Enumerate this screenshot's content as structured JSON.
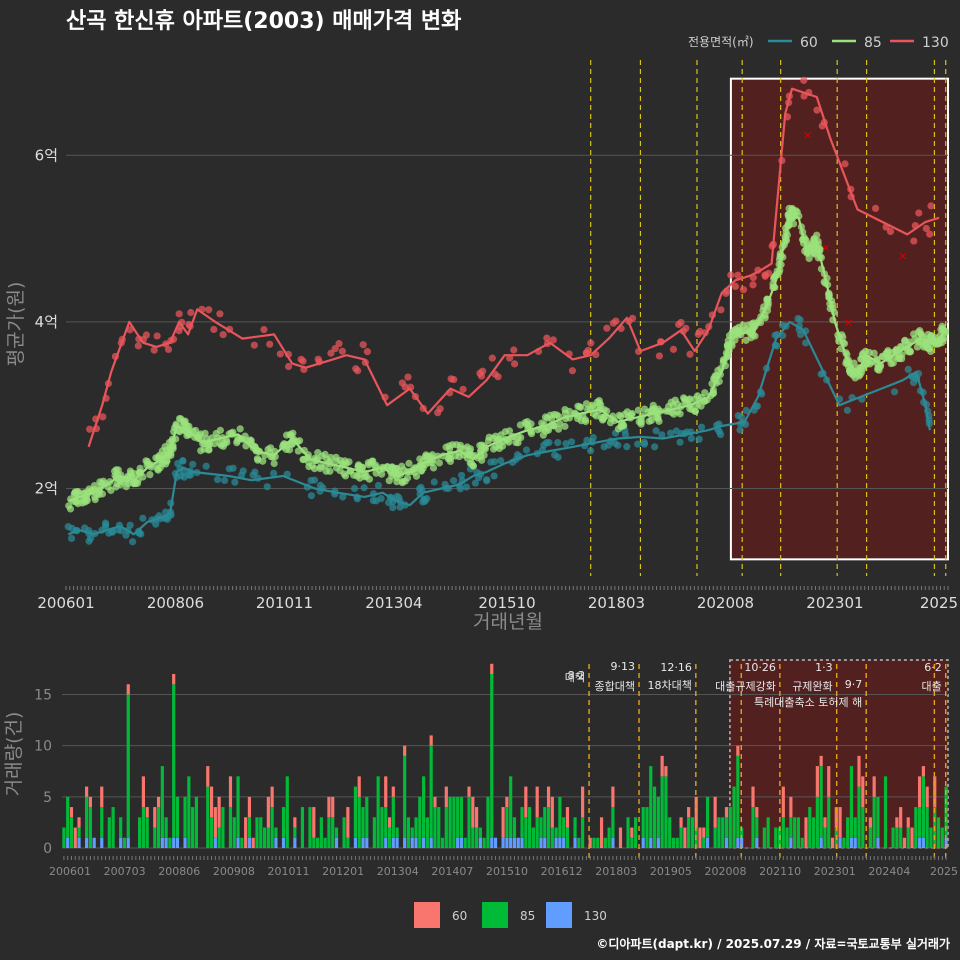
{
  "title": "산곡 한신휴 아파트(2003) 매매가격 변화",
  "credit": "©디아파트(dapt.kr) / 2025.07.29 / 자료=국토교통부 실거래가",
  "colors": {
    "s60": "#2a8a96",
    "s85": "#9be27c",
    "s130": "#e8555a",
    "bar60": "#f8766d",
    "bar85": "#00ba38",
    "bar130": "#619cff",
    "dash": "#d8c21a",
    "ann_dash": "#e8a21a",
    "highlight": "#5a1f1f"
  },
  "chart_data": [
    {
      "type": "line",
      "name": "price",
      "title": "산곡 한신휴 아파트(2003) 매매가격 변화",
      "xlabel": "거래년월",
      "ylabel": "평균가(원)",
      "x_ticks": [
        "200601",
        "200806",
        "201011",
        "201304",
        "201510",
        "201803",
        "202008",
        "202301",
        "2025"
      ],
      "y_ticks": [
        {
          "v": 2,
          "label": "2억"
        },
        {
          "v": 4,
          "label": "4억"
        },
        {
          "v": 6,
          "label": "6억"
        }
      ],
      "ylim": [
        0.95,
        7.0
      ],
      "xlim": [
        2006.0,
        2025.5
      ],
      "legend_title": "전용면적(㎡)",
      "highlight_range": [
        2020.7,
        2025.5
      ],
      "policy_lines": [
        2017.6,
        2018.7,
        2019.95,
        2020.95,
        2021.8,
        2023.05,
        2023.7,
        2025.2,
        2025.45
      ],
      "series": [
        {
          "name": "60",
          "points": [
            [
              2006.05,
              1.45
            ],
            [
              2006.3,
              1.5
            ],
            [
              2006.6,
              1.45
            ],
            [
              2006.9,
              1.5
            ],
            [
              2007.2,
              1.55
            ],
            [
              2007.5,
              1.45
            ],
            [
              2007.8,
              1.6
            ],
            [
              2008.1,
              1.65
            ],
            [
              2008.3,
              1.7
            ],
            [
              2008.45,
              2.2
            ],
            [
              2008.6,
              2.25
            ],
            [
              2008.8,
              2.2
            ],
            [
              2009.6,
              2.15
            ],
            [
              2010.1,
              2.1
            ],
            [
              2010.8,
              2.15
            ],
            [
              2011.5,
              2.0
            ],
            [
              2012.0,
              1.95
            ],
            [
              2012.6,
              1.9
            ],
            [
              2013.0,
              1.95
            ],
            [
              2013.3,
              1.85
            ],
            [
              2013.6,
              1.8
            ],
            [
              2013.9,
              1.95
            ],
            [
              2014.3,
              2.0
            ],
            [
              2014.7,
              2.05
            ],
            [
              2015.0,
              2.15
            ],
            [
              2015.3,
              2.2
            ],
            [
              2015.7,
              2.3
            ],
            [
              2016.2,
              2.4
            ],
            [
              2016.7,
              2.45
            ],
            [
              2017.2,
              2.5
            ],
            [
              2017.7,
              2.55
            ],
            [
              2018.2,
              2.6
            ],
            [
              2018.7,
              2.62
            ],
            [
              2019.2,
              2.6
            ],
            [
              2019.7,
              2.65
            ],
            [
              2020.2,
              2.7
            ],
            [
              2020.5,
              2.75
            ],
            [
              2021.0,
              2.8
            ],
            [
              2021.3,
              3.1
            ],
            [
              2021.7,
              3.8
            ],
            [
              2022.0,
              4.0
            ],
            [
              2022.3,
              3.9
            ],
            [
              2023.1,
              3.0
            ],
            [
              2024.5,
              3.3
            ],
            [
              2024.8,
              3.4
            ],
            [
              2025.0,
              3.0
            ],
            [
              2025.1,
              2.7
            ]
          ]
        },
        {
          "name": "85",
          "points": [
            [
              2006.05,
              1.85
            ],
            [
              2006.3,
              1.9
            ],
            [
              2006.6,
              1.95
            ],
            [
              2006.9,
              2.05
            ],
            [
              2007.2,
              2.15
            ],
            [
              2007.5,
              2.1
            ],
            [
              2007.8,
              2.25
            ],
            [
              2008.1,
              2.35
            ],
            [
              2008.3,
              2.45
            ],
            [
              2008.45,
              2.75
            ],
            [
              2008.7,
              2.7
            ],
            [
              2009.0,
              2.55
            ],
            [
              2009.4,
              2.6
            ],
            [
              2009.8,
              2.65
            ],
            [
              2010.2,
              2.45
            ],
            [
              2010.6,
              2.4
            ],
            [
              2011.0,
              2.6
            ],
            [
              2011.4,
              2.35
            ],
            [
              2011.8,
              2.3
            ],
            [
              2012.2,
              2.25
            ],
            [
              2012.6,
              2.2
            ],
            [
              2013.0,
              2.25
            ],
            [
              2013.3,
              2.15
            ],
            [
              2013.6,
              2.2
            ],
            [
              2013.9,
              2.3
            ],
            [
              2014.3,
              2.4
            ],
            [
              2014.7,
              2.45
            ],
            [
              2015.0,
              2.35
            ],
            [
              2015.3,
              2.5
            ],
            [
              2015.7,
              2.6
            ],
            [
              2016.2,
              2.7
            ],
            [
              2016.6,
              2.75
            ],
            [
              2017.0,
              2.85
            ],
            [
              2017.4,
              2.9
            ],
            [
              2017.8,
              2.95
            ],
            [
              2018.2,
              2.8
            ],
            [
              2018.6,
              2.85
            ],
            [
              2019.0,
              2.9
            ],
            [
              2019.4,
              2.95
            ],
            [
              2019.8,
              3.0
            ],
            [
              2020.2,
              3.1
            ],
            [
              2020.5,
              3.4
            ],
            [
              2020.7,
              3.8
            ],
            [
              2020.9,
              3.85
            ],
            [
              2021.2,
              3.9
            ],
            [
              2021.5,
              4.2
            ],
            [
              2021.7,
              4.5
            ],
            [
              2021.9,
              5.0
            ],
            [
              2022.0,
              5.3
            ],
            [
              2022.2,
              5.25
            ],
            [
              2022.4,
              4.8
            ],
            [
              2022.6,
              4.95
            ],
            [
              2022.8,
              4.5
            ],
            [
              2023.0,
              4.0
            ],
            [
              2023.3,
              3.5
            ],
            [
              2023.5,
              3.4
            ],
            [
              2023.7,
              3.6
            ],
            [
              2024.0,
              3.5
            ],
            [
              2024.3,
              3.6
            ],
            [
              2024.6,
              3.7
            ],
            [
              2024.9,
              3.8
            ],
            [
              2025.1,
              3.75
            ],
            [
              2025.3,
              3.8
            ],
            [
              2025.45,
              3.9
            ]
          ]
        },
        {
          "name": "130",
          "points": [
            [
              2006.5,
              2.5
            ],
            [
              2006.8,
              3.0
            ],
            [
              2007.0,
              3.4
            ],
            [
              2007.4,
              4.0
            ],
            [
              2007.7,
              3.75
            ],
            [
              2008.0,
              3.7
            ],
            [
              2008.3,
              3.75
            ],
            [
              2008.5,
              4.0
            ],
            [
              2008.7,
              3.85
            ],
            [
              2008.9,
              4.15
            ],
            [
              2009.3,
              4.0
            ],
            [
              2009.9,
              3.8
            ],
            [
              2010.6,
              3.85
            ],
            [
              2011.0,
              3.5
            ],
            [
              2011.3,
              3.45
            ],
            [
              2011.9,
              3.55
            ],
            [
              2012.2,
              3.6
            ],
            [
              2012.6,
              3.55
            ],
            [
              2013.1,
              3.0
            ],
            [
              2013.6,
              3.2
            ],
            [
              2014.0,
              2.9
            ],
            [
              2014.5,
              3.2
            ],
            [
              2014.9,
              3.1
            ],
            [
              2015.3,
              3.3
            ],
            [
              2015.7,
              3.6
            ],
            [
              2016.2,
              3.6
            ],
            [
              2016.7,
              3.75
            ],
            [
              2017.2,
              3.55
            ],
            [
              2017.6,
              3.6
            ],
            [
              2018.0,
              3.8
            ],
            [
              2018.4,
              4.05
            ],
            [
              2018.7,
              3.65
            ],
            [
              2019.2,
              3.75
            ],
            [
              2019.6,
              3.9
            ],
            [
              2019.9,
              3.65
            ],
            [
              2020.2,
              3.9
            ],
            [
              2020.5,
              4.35
            ],
            [
              2020.8,
              4.5
            ],
            [
              2021.1,
              4.55
            ],
            [
              2021.3,
              4.6
            ],
            [
              2021.6,
              4.7
            ],
            [
              2021.9,
              6.5
            ],
            [
              2022.05,
              6.8
            ],
            [
              2022.6,
              6.7
            ],
            [
              2022.9,
              6.2
            ],
            [
              2023.5,
              5.35
            ],
            [
              2024.6,
              5.05
            ],
            [
              2025.0,
              5.2
            ],
            [
              2025.3,
              5.25
            ]
          ]
        }
      ],
      "x_marks": [
        [
          2022.4,
          6.25
        ],
        [
          2022.8,
          4.9
        ],
        [
          2023.3,
          4.0
        ],
        [
          2024.5,
          4.8
        ]
      ]
    },
    {
      "type": "bar",
      "name": "volume",
      "ylabel": "거래량(건)",
      "y_ticks": [
        0,
        5,
        10,
        15
      ],
      "ylim": [
        0,
        18
      ],
      "x_ticks": [
        "200601",
        "200703",
        "200806",
        "200908",
        "201011",
        "201201",
        "201304",
        "201407",
        "201510",
        "201612",
        "201803",
        "201905",
        "202008",
        "202110",
        "202301",
        "202404",
        "2025"
      ],
      "series": [
        {
          "name": "60",
          "color_key": "bar60"
        },
        {
          "name": "85",
          "color_key": "bar85"
        },
        {
          "name": "130",
          "color_key": "bar130"
        }
      ],
      "spikes": [
        [
          2007.4,
          16,
          14,
          1,
          1
        ],
        [
          2008.4,
          17,
          15,
          1,
          1
        ],
        [
          2014.1,
          11,
          9,
          1,
          1
        ],
        [
          2013.5,
          10,
          8,
          1,
          1
        ],
        [
          2015.4,
          18,
          16,
          1,
          1
        ],
        [
          2020.8,
          10,
          8,
          1,
          1
        ],
        [
          2022.7,
          9,
          7,
          1,
          1
        ],
        [
          2024.9,
          8,
          6,
          1,
          1
        ],
        [
          2025.4,
          6,
          5,
          0,
          1
        ]
      ],
      "annotations": [
        {
          "x": 2017.6,
          "date": "8·2",
          "text": "대책"
        },
        {
          "x": 2018.7,
          "date": "9·13",
          "text": "종합대책"
        },
        {
          "x": 2019.95,
          "date": "12·16",
          "text": "18차대책"
        },
        {
          "x": 2021.8,
          "date": "10·26",
          "text": "대출규제강화"
        },
        {
          "x": 2023.05,
          "date": "1·3",
          "text": "규제완화"
        },
        {
          "x": 2023.7,
          "date": "9·7",
          "text": "특례대출축소 토허제 해"
        },
        {
          "x": 2025.45,
          "date": "6·2",
          "text": "대출"
        }
      ]
    }
  ]
}
